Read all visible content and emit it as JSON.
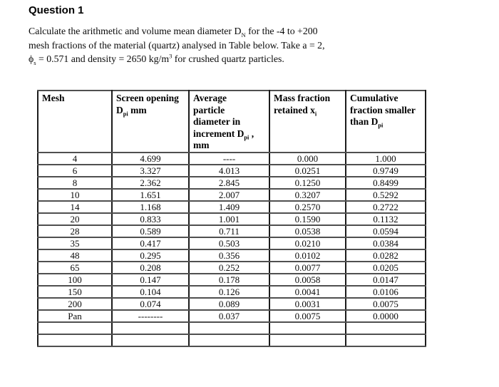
{
  "title": "Question 1",
  "colors": {
    "background": "#ffffff",
    "text": "#000000",
    "table_border": "#000000"
  },
  "intro": {
    "lines": [
      [
        {
          "t": "Calculate the arithmetic and volume mean diameter D"
        },
        {
          "sub": "N"
        },
        {
          "t": " for the -4 to +200"
        }
      ],
      [
        {
          "t": "mesh fractions of the material (quartz) analysed in Table below. Take a = 2,"
        }
      ],
      [
        {
          "t": "ϕ"
        },
        {
          "sub": "s"
        },
        {
          "t": " = 0.571 and density = 2650 kg/m"
        },
        {
          "sup": "3"
        },
        {
          "t": " for crushed quartz particles."
        }
      ]
    ]
  },
  "table": {
    "columns": [
      {
        "id": "mesh",
        "lines": [
          [
            {
              "t": "Mesh"
            }
          ]
        ]
      },
      {
        "id": "screen-opening",
        "lines": [
          [
            {
              "t": "Screen opening"
            }
          ],
          [
            {
              "t": "D"
            },
            {
              "sub": "pi"
            },
            {
              "t": " mm"
            }
          ]
        ]
      },
      {
        "id": "average-particle-diameter",
        "lines": [
          [
            {
              "t": "Average"
            }
          ],
          [
            {
              "t": "particle"
            }
          ],
          [
            {
              "t": "diameter in"
            }
          ],
          [
            {
              "t": "increment D"
            },
            {
              "sub": "pi"
            },
            {
              "t": " ,"
            }
          ],
          [
            {
              "t": "mm"
            }
          ]
        ]
      },
      {
        "id": "mass-fraction-retained",
        "lines": [
          [
            {
              "t": "Mass fraction"
            }
          ],
          [
            {
              "t": "retained x"
            },
            {
              "sub": "i"
            }
          ]
        ]
      },
      {
        "id": "cumulative-fraction-smaller",
        "lines": [
          [
            {
              "t": "Cumulative"
            }
          ],
          [
            {
              "t": "fraction smaller"
            }
          ],
          [
            {
              "t": "than D"
            },
            {
              "sub": "pi"
            }
          ]
        ]
      }
    ],
    "rows": [
      [
        "4",
        "4.699",
        "----",
        "0.000",
        "1.000"
      ],
      [
        "6",
        "3.327",
        "4.013",
        "0.0251",
        "0.9749"
      ],
      [
        "8",
        "2.362",
        "2.845",
        "0.1250",
        "0.8499"
      ],
      [
        "10",
        "1.651",
        "2.007",
        "0.3207",
        "0.5292"
      ],
      [
        "14",
        "1.168",
        "1.409",
        "0.2570",
        "0.2722"
      ],
      [
        "20",
        "0.833",
        "1.001",
        "0.1590",
        "0.1132"
      ],
      [
        "28",
        "0.589",
        "0.711",
        "0.0538",
        "0.0594"
      ],
      [
        "35",
        "0.417",
        "0.503",
        "0.0210",
        "0.0384"
      ],
      [
        "48",
        "0.295",
        "0.356",
        "0.0102",
        "0.0282"
      ],
      [
        "65",
        "0.208",
        "0.252",
        "0.0077",
        "0.0205"
      ],
      [
        "100",
        "0.147",
        "0.178",
        "0.0058",
        "0.0147"
      ],
      [
        "150",
        "0.104",
        "0.126",
        "0.0041",
        "0.0106"
      ],
      [
        "200",
        "0.074",
        "0.089",
        "0.0031",
        "0.0075"
      ],
      [
        "Pan",
        "--------",
        "0.037",
        "0.0075",
        "0.0000"
      ],
      [
        "",
        "",
        "",
        "",
        ""
      ],
      [
        "",
        "",
        "",
        "",
        ""
      ]
    ]
  }
}
